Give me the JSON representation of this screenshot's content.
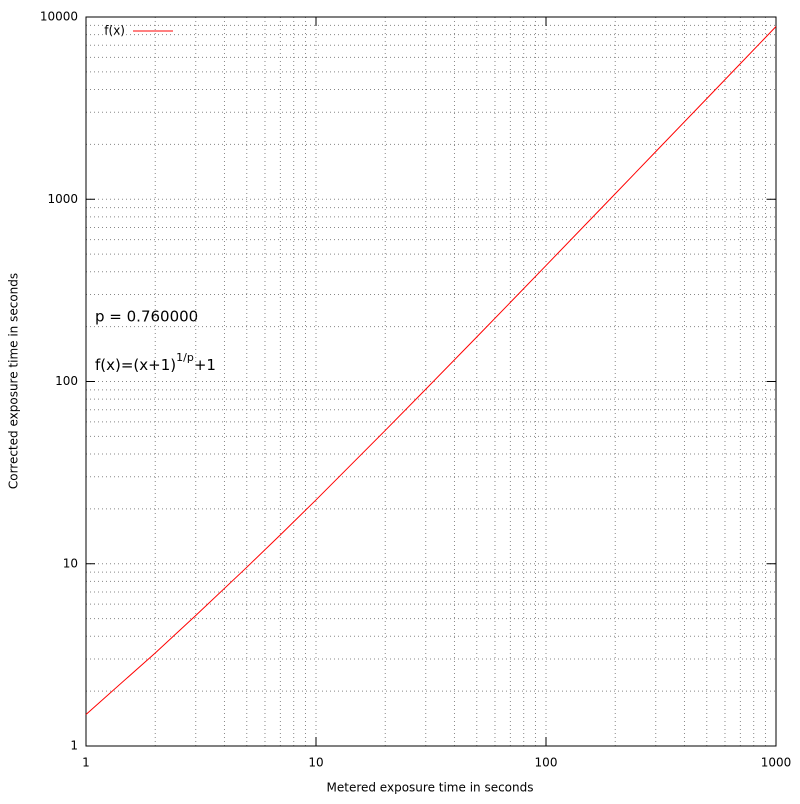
{
  "chart_data": {
    "type": "line",
    "xlabel": "Metered exposure time in seconds",
    "ylabel": "Corrected exposure time in seconds",
    "annotations": {
      "param": "p = 0.760000",
      "formula": [
        "f(x)=(x+1)",
        "1/p",
        "+1"
      ]
    },
    "x": [
      1,
      2,
      3,
      5,
      7,
      10,
      20,
      30,
      50,
      70,
      100,
      200,
      300,
      500,
      700,
      1000
    ],
    "series": [
      {
        "name": "f(x)",
        "color": "#ff0000",
        "values": [
          1.49,
          3.24,
          5.2,
          9.56,
          14.4,
          22.4,
          53.9,
          90.7,
          175.5,
          271.7,
          432.8,
          1072,
          1825,
          3566,
          5547,
          8869
        ]
      }
    ],
    "xscale": "log",
    "yscale": "log",
    "xlim": [
      1,
      1000
    ],
    "ylim": [
      1,
      10000
    ],
    "xticks": [
      1,
      10,
      100,
      1000
    ],
    "yticks": [
      1,
      10,
      100,
      1000,
      10000
    ],
    "xminorticks": [
      2,
      3,
      4,
      5,
      6,
      7,
      8,
      9,
      20,
      30,
      40,
      50,
      60,
      70,
      80,
      90,
      200,
      300,
      400,
      500,
      600,
      700,
      800,
      900
    ],
    "yminorticks": [
      2,
      3,
      4,
      5,
      6,
      7,
      8,
      9,
      20,
      30,
      40,
      50,
      60,
      70,
      80,
      90,
      200,
      300,
      400,
      500,
      600,
      700,
      800,
      900,
      2000,
      3000,
      4000,
      5000,
      6000,
      7000,
      8000,
      9000
    ],
    "grid": true,
    "legend": "top-left"
  }
}
